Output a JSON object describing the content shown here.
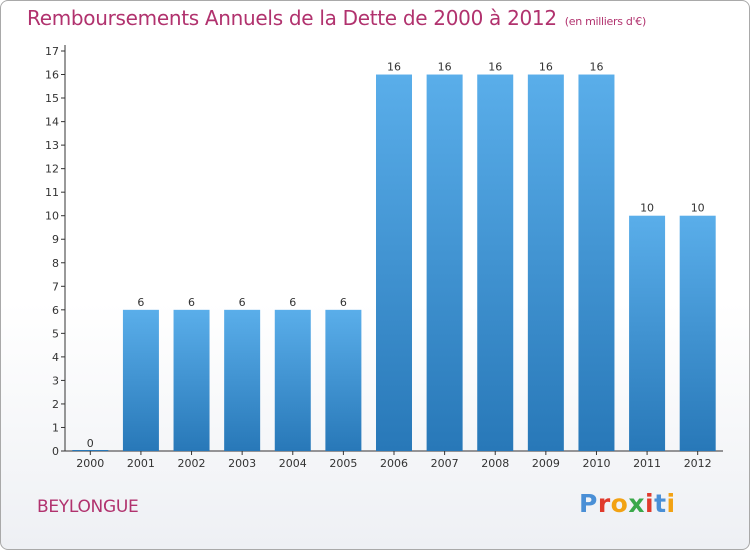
{
  "header": {
    "title": "Remboursements Annuels de la Dette de 2000 à 2012",
    "subtitle": "(en milliers d'€)"
  },
  "footer": {
    "commune": "BEYLONGUE",
    "logo": [
      "P",
      "r",
      "o",
      "x",
      "i",
      "t",
      "i"
    ],
    "logo_colors": [
      "#4a8fd6",
      "#e03a2c",
      "#f2a213",
      "#3aa84a",
      "#e03a2c",
      "#4a8fd6",
      "#f2a213"
    ]
  },
  "chart_data": {
    "type": "bar",
    "title": "Remboursements Annuels de la Dette de 2000 à 2012",
    "subtitle": "(en milliers d'€)",
    "categories": [
      "2000",
      "2001",
      "2002",
      "2003",
      "2004",
      "2005",
      "2006",
      "2007",
      "2008",
      "2009",
      "2010",
      "2011",
      "2012"
    ],
    "values": [
      0,
      6,
      6,
      6,
      6,
      6,
      16,
      16,
      16,
      16,
      16,
      10,
      10
    ],
    "data_labels": [
      "0",
      "6",
      "6",
      "6",
      "6",
      "6",
      "16",
      "16",
      "16",
      "16",
      "16",
      "10",
      "10"
    ],
    "ylim": [
      0,
      17
    ],
    "yticks": [
      "0",
      "1",
      "2",
      "3",
      "4",
      "5",
      "6",
      "7",
      "8",
      "9",
      "10",
      "11",
      "12",
      "13",
      "14",
      "15",
      "16",
      "17"
    ],
    "grid": false,
    "legend": "none",
    "bar_color_top": "#5aaeea",
    "bar_color_bottom": "#2878b8"
  }
}
